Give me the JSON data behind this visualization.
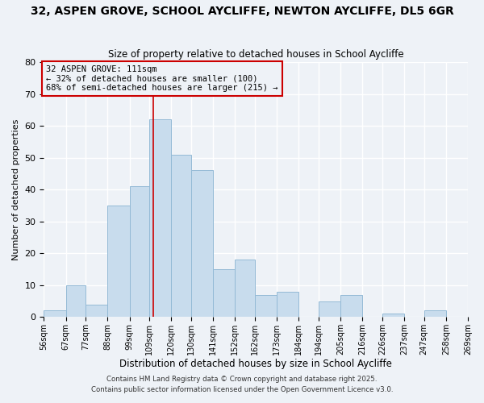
{
  "title": "32, ASPEN GROVE, SCHOOL AYCLIFFE, NEWTON AYCLIFFE, DL5 6GR",
  "subtitle": "Size of property relative to detached houses in School Aycliffe",
  "xlabel": "Distribution of detached houses by size in School Aycliffe",
  "ylabel": "Number of detached properties",
  "bar_values": [
    2,
    10,
    4,
    35,
    41,
    62,
    51,
    46,
    15,
    18,
    7,
    8,
    0,
    5,
    7,
    0,
    1,
    0,
    2,
    0
  ],
  "bin_edges": [
    56,
    67,
    77,
    88,
    99,
    109,
    120,
    130,
    141,
    152,
    162,
    173,
    184,
    194,
    205,
    216,
    226,
    237,
    247,
    258,
    269
  ],
  "tick_labels": [
    "56sqm",
    "67sqm",
    "77sqm",
    "88sqm",
    "99sqm",
    "109sqm",
    "120sqm",
    "130sqm",
    "141sqm",
    "152sqm",
    "162sqm",
    "173sqm",
    "184sqm",
    "194sqm",
    "205sqm",
    "216sqm",
    "226sqm",
    "237sqm",
    "247sqm",
    "258sqm",
    "269sqm"
  ],
  "bar_color": "#c8dced",
  "bar_edge_color": "#94bad6",
  "vline_x": 111,
  "vline_color": "#cc0000",
  "annotation_title": "32 ASPEN GROVE: 111sqm",
  "annotation_line1": "← 32% of detached houses are smaller (100)",
  "annotation_line2": "68% of semi-detached houses are larger (215) →",
  "box_edge_color": "#cc0000",
  "ylim": [
    0,
    80
  ],
  "yticks": [
    0,
    10,
    20,
    30,
    40,
    50,
    60,
    70,
    80
  ],
  "bg_color": "#eef2f7",
  "grid_color": "#ffffff",
  "footer1": "Contains HM Land Registry data © Crown copyright and database right 2025.",
  "footer2": "Contains public sector information licensed under the Open Government Licence v3.0."
}
